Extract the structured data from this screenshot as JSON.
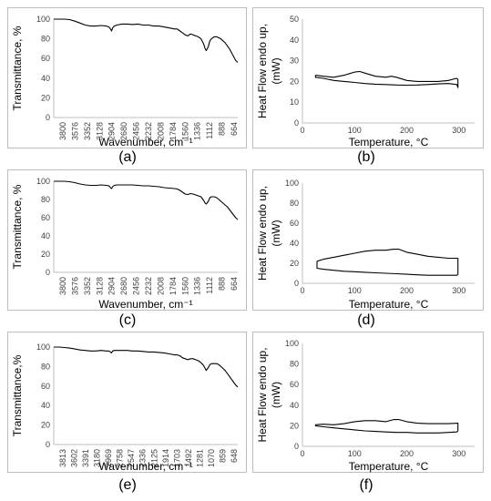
{
  "chart_data": [
    {
      "id": "a",
      "type": "line",
      "caption": "(a)",
      "xlabel": "Wavenumber, cm⁻¹",
      "ylabel": "Transmittance, %",
      "ylim": [
        0,
        100
      ],
      "yticks": [
        0,
        20,
        40,
        60,
        80,
        100
      ],
      "x_reversed": true,
      "xlim": [
        4000,
        500
      ],
      "xticks": [
        "3800",
        "3576",
        "3352",
        "3128",
        "2904",
        "2680",
        "2456",
        "2232",
        "2008",
        "1784",
        "1560",
        "1336",
        "1112",
        "888",
        "664"
      ],
      "series": [
        {
          "x": [
            4000,
            3900,
            3800,
            3700,
            3600,
            3500,
            3400,
            3300,
            3200,
            3100,
            3000,
            2950,
            2920,
            2900,
            2880,
            2850,
            2800,
            2700,
            2600,
            2500,
            2400,
            2300,
            2200,
            2100,
            2000,
            1900,
            1800,
            1700,
            1650,
            1600,
            1550,
            1500,
            1450,
            1400,
            1350,
            1300,
            1250,
            1200,
            1150,
            1120,
            1100,
            1060,
            1030,
            1000,
            950,
            900,
            860,
            820,
            780,
            740,
            700,
            660,
            620,
            580,
            540,
            500
          ],
          "y": [
            100,
            100,
            100,
            99.5,
            98,
            96,
            94,
            93,
            93,
            93.5,
            93,
            92,
            90,
            88,
            91,
            93,
            94,
            95,
            95,
            94.5,
            95,
            94,
            94,
            93,
            93,
            92,
            91,
            90,
            90,
            88,
            86,
            84,
            83,
            85,
            84,
            83,
            82,
            80,
            75,
            70,
            68,
            72,
            78,
            80,
            82,
            82,
            81,
            80,
            78,
            76,
            73,
            70,
            66,
            62,
            58,
            56
          ]
        }
      ]
    },
    {
      "id": "b",
      "type": "line",
      "caption": "(b)",
      "xlabel": "Temperature, °C",
      "ylabel": "Heat Flow endo up, (mW)",
      "ylim": [
        0,
        50
      ],
      "yticks": [
        0,
        10,
        20,
        30,
        40,
        50
      ],
      "xlim": [
        0,
        330
      ],
      "xticks": [
        0,
        100,
        200,
        300
      ],
      "series": [
        {
          "x": [
            25,
            40,
            60,
            80,
            100,
            110,
            120,
            140,
            160,
            170,
            180,
            200,
            220,
            240,
            260,
            280,
            295,
            298,
            298,
            296,
            280,
            260,
            240,
            220,
            200,
            180,
            160,
            140,
            120,
            100,
            80,
            60,
            40,
            25,
            25
          ],
          "y": [
            23,
            22.5,
            22,
            23,
            24.5,
            24.8,
            24,
            22.5,
            22,
            22.5,
            22,
            20.5,
            20,
            20,
            20,
            20.5,
            21.5,
            21,
            17,
            18.5,
            19,
            18.8,
            18.5,
            18.3,
            18.2,
            18.3,
            18.5,
            18.7,
            19,
            19.5,
            20,
            20.5,
            21.5,
            22,
            23
          ]
        }
      ]
    },
    {
      "id": "c",
      "type": "line",
      "caption": "(c)",
      "xlabel": "Wavenumber, cm⁻¹",
      "ylabel": "Transmittance, %",
      "ylim": [
        0,
        100
      ],
      "yticks": [
        0,
        20,
        40,
        60,
        80,
        100
      ],
      "x_reversed": true,
      "xlim": [
        4000,
        500
      ],
      "xticks": [
        "3800",
        "3576",
        "3352",
        "3128",
        "2904",
        "2680",
        "2456",
        "2232",
        "2008",
        "1784",
        "1560",
        "1336",
        "1112",
        "888",
        "664"
      ],
      "series": [
        {
          "x": [
            4000,
            3900,
            3800,
            3700,
            3600,
            3500,
            3400,
            3300,
            3200,
            3100,
            3000,
            2950,
            2920,
            2900,
            2880,
            2850,
            2800,
            2700,
            2600,
            2500,
            2400,
            2300,
            2200,
            2100,
            2000,
            1900,
            1800,
            1700,
            1650,
            1600,
            1550,
            1500,
            1450,
            1400,
            1350,
            1300,
            1250,
            1200,
            1150,
            1120,
            1100,
            1060,
            1030,
            1000,
            950,
            900,
            860,
            820,
            780,
            740,
            700,
            660,
            620,
            580,
            540,
            500
          ],
          "y": [
            100,
            100,
            100,
            99.5,
            98.5,
            97,
            96,
            95.5,
            95.5,
            96,
            95.5,
            95,
            93,
            92,
            94,
            95.5,
            96,
            96,
            96,
            96,
            95.5,
            95,
            95,
            94.5,
            94,
            93,
            92.5,
            92,
            91.5,
            90,
            88,
            86,
            85.5,
            86.5,
            86,
            85,
            84,
            83,
            79,
            76,
            75,
            78,
            82,
            83,
            83,
            82,
            80,
            78,
            76,
            74,
            72,
            69,
            66,
            63,
            60,
            58
          ]
        }
      ]
    },
    {
      "id": "d",
      "type": "line",
      "caption": "(d)",
      "xlabel": "Temperature, °C",
      "ylabel": "Heat Flow endo up, (mW)",
      "ylim": [
        0,
        100
      ],
      "yticks": [
        0,
        20,
        40,
        60,
        80,
        100
      ],
      "xlim": [
        0,
        330
      ],
      "xticks": [
        0,
        100,
        200,
        300
      ],
      "series": [
        {
          "x": [
            28,
            40,
            60,
            80,
            100,
            120,
            140,
            160,
            175,
            185,
            200,
            220,
            240,
            260,
            280,
            298,
            298,
            296,
            280,
            260,
            240,
            220,
            200,
            180,
            160,
            140,
            120,
            100,
            80,
            60,
            40,
            28,
            28
          ],
          "y": [
            22,
            24,
            26,
            28,
            30,
            32,
            33,
            33,
            34,
            34,
            31,
            29,
            27,
            26,
            25,
            25,
            9,
            8,
            8,
            8,
            8,
            8.5,
            9,
            9.5,
            10,
            10.5,
            11,
            11.5,
            12,
            13,
            14,
            15,
            22
          ]
        }
      ]
    },
    {
      "id": "e",
      "type": "line",
      "caption": "(e)",
      "xlabel": "Wavenumber, cm⁻¹",
      "ylabel": "Transmittance,%",
      "ylim": [
        0,
        100
      ],
      "yticks": [
        0,
        20,
        40,
        60,
        80,
        100
      ],
      "x_reversed": true,
      "xlim": [
        4000,
        500
      ],
      "xticks": [
        "3813",
        "3602",
        "3391",
        "3180",
        "2969",
        "2758",
        "2547",
        "2336",
        "2125",
        "1914",
        "1703",
        "1492",
        "1281",
        "1070",
        "859",
        "648"
      ],
      "series": [
        {
          "x": [
            4000,
            3900,
            3800,
            3700,
            3600,
            3500,
            3400,
            3300,
            3200,
            3100,
            3000,
            2950,
            2920,
            2900,
            2880,
            2850,
            2800,
            2700,
            2600,
            2500,
            2400,
            2300,
            2200,
            2100,
            2000,
            1900,
            1800,
            1700,
            1650,
            1600,
            1550,
            1500,
            1450,
            1400,
            1350,
            1300,
            1250,
            1200,
            1150,
            1120,
            1100,
            1060,
            1030,
            1000,
            950,
            900,
            860,
            820,
            780,
            740,
            700,
            660,
            620,
            580,
            540,
            500
          ],
          "y": [
            100,
            100,
            99.5,
            99,
            98,
            97,
            96.5,
            96,
            96,
            96.5,
            96,
            96,
            95,
            94,
            96,
            96.5,
            96.5,
            96.5,
            96.5,
            96,
            96,
            95.5,
            95,
            95,
            94.5,
            94,
            93,
            92,
            92,
            91,
            89,
            88,
            87,
            88,
            88,
            87,
            86,
            84,
            81,
            78,
            76,
            79,
            82,
            83,
            83,
            83,
            82,
            80,
            78,
            76,
            73,
            70,
            67,
            64,
            61,
            59
          ]
        }
      ]
    },
    {
      "id": "f",
      "type": "line",
      "caption": "(f)",
      "xlabel": "Temperature, °C",
      "ylabel": "Heat Flow endo up, (mW)",
      "ylim": [
        0,
        100
      ],
      "yticks": [
        0,
        20,
        40,
        60,
        80,
        100
      ],
      "xlim": [
        0,
        330
      ],
      "xticks": [
        0,
        100,
        200,
        300
      ],
      "series": [
        {
          "x": [
            25,
            40,
            60,
            80,
            100,
            120,
            140,
            160,
            175,
            185,
            200,
            220,
            240,
            260,
            280,
            298,
            298,
            296,
            280,
            260,
            240,
            220,
            200,
            180,
            160,
            140,
            120,
            100,
            80,
            60,
            40,
            25,
            25
          ],
          "y": [
            21,
            21.5,
            21,
            22,
            24,
            25,
            25,
            24,
            26,
            26,
            24,
            22.5,
            22,
            22,
            22,
            22.5,
            15,
            14,
            13.5,
            13,
            13,
            13,
            13.5,
            13.5,
            14,
            14.5,
            15,
            16,
            17,
            18,
            19,
            20,
            21
          ]
        }
      ]
    }
  ]
}
